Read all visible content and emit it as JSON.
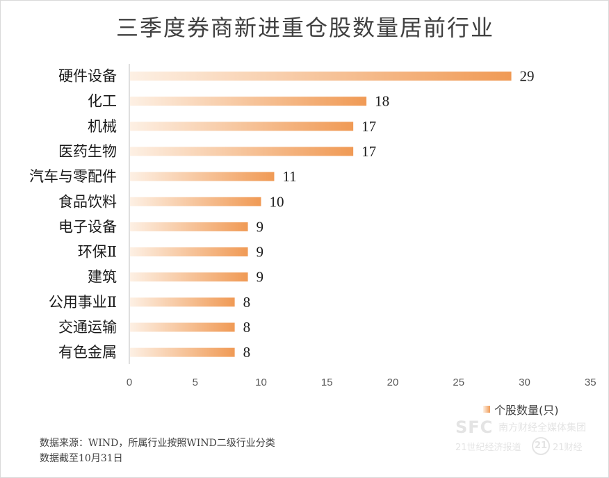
{
  "chart_data": {
    "type": "bar",
    "orientation": "horizontal",
    "title": "三季度券商新进重仓股数量居前行业",
    "categories": [
      "硬件设备",
      "化工",
      "机械",
      "医药生物",
      "汽车与零配件",
      "食品饮料",
      "电子设备",
      "环保Ⅱ",
      "建筑",
      "公用事业Ⅱ",
      "交通运输",
      "有色金属"
    ],
    "series": [
      {
        "name": "个股数量(只)",
        "values": [
          29,
          18,
          17,
          17,
          11,
          10,
          9,
          9,
          9,
          8,
          8,
          8
        ]
      }
    ],
    "xlim": [
      0,
      35
    ],
    "xticks": [
      "0",
      "5",
      "10",
      "15",
      "20",
      "25",
      "30",
      "35"
    ],
    "grid": false,
    "legend_position": "bottom-right",
    "bar_gradient": {
      "start": "#fdf0e4",
      "end": "#f09a55"
    }
  },
  "source_note": {
    "line1": "数据来源：WIND，所属行业按照WIND二级行业分类",
    "line2": "数据截至10月31日"
  },
  "watermark": {
    "logo": "SFC",
    "line1": "南方财经全媒体集团",
    "line2": "21世纪经济报道",
    "badge": "21",
    "line3": "21财经"
  }
}
